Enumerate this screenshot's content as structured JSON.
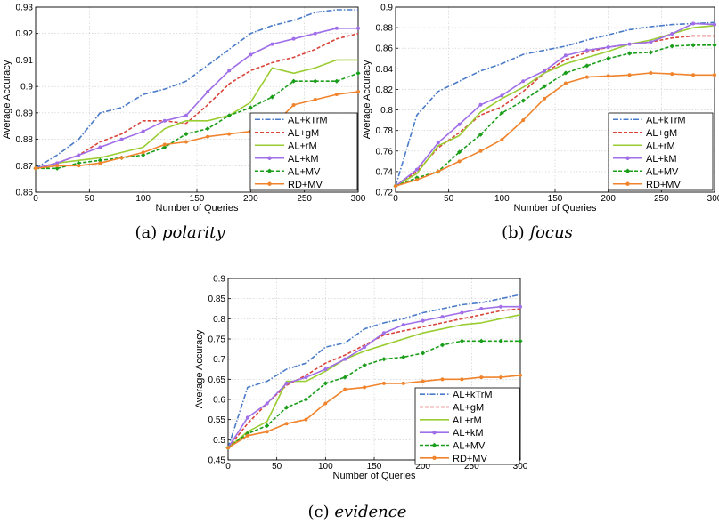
{
  "chart_data": [
    {
      "type": "line",
      "caption_label": "(a)",
      "caption_name": "polarity",
      "xlabel": "Number of Queries",
      "ylabel": "Average Accuracy",
      "xlim": [
        0,
        300
      ],
      "ylim": [
        0.86,
        0.93
      ],
      "xticks": [
        "0",
        "50",
        "100",
        "150",
        "200",
        "250",
        "300"
      ],
      "yticks": [
        "0.86",
        "0.87",
        "0.88",
        "0.89",
        "0.9",
        "0.91",
        "0.92",
        "0.93"
      ],
      "grid": true,
      "legend_position": "bottom-right",
      "x": [
        0,
        20,
        40,
        60,
        80,
        100,
        120,
        140,
        160,
        180,
        200,
        220,
        240,
        260,
        280,
        300
      ],
      "series": [
        {
          "name": "AL+kTrM",
          "color": "#4a7bc8",
          "dash": "6,2,1.5,2",
          "marker": "none",
          "values": [
            0.869,
            0.874,
            0.88,
            0.89,
            0.892,
            0.897,
            0.899,
            0.902,
            0.908,
            0.914,
            0.92,
            0.923,
            0.925,
            0.928,
            0.929,
            0.929
          ]
        },
        {
          "name": "AL+gM",
          "color": "#d9453b",
          "dash": "4,2",
          "marker": "none",
          "values": [
            0.869,
            0.871,
            0.874,
            0.879,
            0.882,
            0.887,
            0.887,
            0.886,
            0.893,
            0.901,
            0.906,
            0.909,
            0.911,
            0.914,
            0.918,
            0.92
          ]
        },
        {
          "name": "AL+rM",
          "color": "#9acd32",
          "dash": "none",
          "marker": "none",
          "values": [
            0.869,
            0.871,
            0.872,
            0.873,
            0.875,
            0.877,
            0.884,
            0.887,
            0.887,
            0.889,
            0.894,
            0.907,
            0.905,
            0.907,
            0.91,
            0.91
          ]
        },
        {
          "name": "AL+kM",
          "color": "#9f6ee8",
          "dash": "none",
          "marker": "circle",
          "values": [
            0.869,
            0.871,
            0.874,
            0.877,
            0.88,
            0.883,
            0.887,
            0.889,
            0.898,
            0.906,
            0.912,
            0.916,
            0.918,
            0.92,
            0.922,
            0.922
          ]
        },
        {
          "name": "AL+MV",
          "color": "#1a9e1a",
          "dash": "4,2",
          "marker": "diamond",
          "values": [
            0.869,
            0.869,
            0.871,
            0.872,
            0.873,
            0.874,
            0.877,
            0.882,
            0.884,
            0.889,
            0.892,
            0.896,
            0.902,
            0.902,
            0.902,
            0.905
          ]
        },
        {
          "name": "RD+MV",
          "color": "#f0832b",
          "dash": "none",
          "marker": "circle",
          "values": [
            0.869,
            0.87,
            0.87,
            0.871,
            0.873,
            0.875,
            0.878,
            0.879,
            0.881,
            0.882,
            0.883,
            0.885,
            0.893,
            0.895,
            0.897,
            0.898
          ]
        }
      ]
    },
    {
      "type": "line",
      "caption_label": "(b)",
      "caption_name": "focus",
      "xlabel": "Number of Queries",
      "ylabel": "Average Accuracy",
      "xlim": [
        0,
        300
      ],
      "ylim": [
        0.72,
        0.9
      ],
      "xticks": [
        "0",
        "50",
        "100",
        "150",
        "200",
        "250",
        "300"
      ],
      "yticks": [
        "0.72",
        "0.74",
        "0.76",
        "0.78",
        "0.8",
        "0.82",
        "0.84",
        "0.86",
        "0.88",
        "0.9"
      ],
      "grid": true,
      "legend_position": "bottom-right",
      "x": [
        0,
        20,
        40,
        60,
        80,
        100,
        120,
        140,
        160,
        180,
        200,
        220,
        240,
        260,
        280,
        300
      ],
      "series": [
        {
          "name": "AL+kTrM",
          "color": "#4a7bc8",
          "dash": "6,2,1.5,2",
          "marker": "none",
          "values": [
            0.726,
            0.795,
            0.818,
            0.828,
            0.838,
            0.845,
            0.854,
            0.858,
            0.862,
            0.868,
            0.873,
            0.878,
            0.881,
            0.883,
            0.884,
            0.885
          ]
        },
        {
          "name": "AL+gM",
          "color": "#d9453b",
          "dash": "4,2",
          "marker": "none",
          "values": [
            0.726,
            0.74,
            0.763,
            0.778,
            0.795,
            0.803,
            0.818,
            0.836,
            0.849,
            0.856,
            0.861,
            0.864,
            0.866,
            0.87,
            0.872,
            0.872
          ]
        },
        {
          "name": "AL+rM",
          "color": "#9acd32",
          "dash": "none",
          "marker": "none",
          "values": [
            0.726,
            0.738,
            0.765,
            0.775,
            0.798,
            0.811,
            0.822,
            0.836,
            0.845,
            0.851,
            0.857,
            0.864,
            0.868,
            0.874,
            0.88,
            0.882
          ]
        },
        {
          "name": "AL+kM",
          "color": "#9f6ee8",
          "dash": "none",
          "marker": "circle",
          "values": [
            0.726,
            0.742,
            0.768,
            0.786,
            0.805,
            0.814,
            0.828,
            0.838,
            0.853,
            0.858,
            0.861,
            0.864,
            0.866,
            0.874,
            0.884,
            0.883
          ]
        },
        {
          "name": "AL+MV",
          "color": "#1a9e1a",
          "dash": "4,2",
          "marker": "diamond",
          "values": [
            0.726,
            0.734,
            0.74,
            0.759,
            0.776,
            0.797,
            0.809,
            0.823,
            0.836,
            0.843,
            0.85,
            0.855,
            0.856,
            0.862,
            0.863,
            0.863
          ]
        },
        {
          "name": "RD+MV",
          "color": "#f0832b",
          "dash": "none",
          "marker": "circle",
          "values": [
            0.726,
            0.732,
            0.74,
            0.75,
            0.76,
            0.771,
            0.79,
            0.811,
            0.826,
            0.832,
            0.833,
            0.834,
            0.836,
            0.835,
            0.834,
            0.834
          ]
        }
      ]
    },
    {
      "type": "line",
      "caption_label": "(c)",
      "caption_name": "evidence",
      "xlabel": "Number of Queries",
      "ylabel": "Average Accuracy",
      "xlim": [
        0,
        300
      ],
      "ylim": [
        0.45,
        0.9
      ],
      "xticks": [
        "0",
        "50",
        "100",
        "150",
        "200",
        "250",
        "300"
      ],
      "yticks": [
        "0.45",
        "0.5",
        "0.55",
        "0.6",
        "0.65",
        "0.7",
        "0.75",
        "0.8",
        "0.85",
        "0.9"
      ],
      "grid": true,
      "legend_position": "bottom-right",
      "x": [
        0,
        20,
        40,
        60,
        80,
        100,
        120,
        140,
        160,
        180,
        200,
        220,
        240,
        260,
        280,
        300
      ],
      "series": [
        {
          "name": "AL+kTrM",
          "color": "#4a7bc8",
          "dash": "6,2,1.5,2",
          "marker": "none",
          "values": [
            0.48,
            0.63,
            0.645,
            0.675,
            0.69,
            0.73,
            0.74,
            0.775,
            0.79,
            0.8,
            0.815,
            0.825,
            0.835,
            0.84,
            0.85,
            0.86
          ]
        },
        {
          "name": "AL+gM",
          "color": "#d9453b",
          "dash": "4,2",
          "marker": "none",
          "values": [
            0.48,
            0.54,
            0.59,
            0.635,
            0.66,
            0.69,
            0.71,
            0.735,
            0.76,
            0.77,
            0.78,
            0.79,
            0.8,
            0.81,
            0.82,
            0.825
          ]
        },
        {
          "name": "AL+rM",
          "color": "#9acd32",
          "dash": "none",
          "marker": "none",
          "values": [
            0.48,
            0.52,
            0.545,
            0.645,
            0.645,
            0.67,
            0.7,
            0.72,
            0.735,
            0.75,
            0.765,
            0.775,
            0.785,
            0.79,
            0.8,
            0.81
          ]
        },
        {
          "name": "AL+kM",
          "color": "#9f6ee8",
          "dash": "none",
          "marker": "circle",
          "values": [
            0.48,
            0.555,
            0.59,
            0.64,
            0.655,
            0.675,
            0.7,
            0.73,
            0.765,
            0.785,
            0.795,
            0.805,
            0.815,
            0.825,
            0.83,
            0.83
          ]
        },
        {
          "name": "AL+MV",
          "color": "#1a9e1a",
          "dash": "4,2",
          "marker": "diamond",
          "values": [
            0.48,
            0.515,
            0.535,
            0.58,
            0.6,
            0.64,
            0.655,
            0.685,
            0.7,
            0.705,
            0.715,
            0.735,
            0.745,
            0.745,
            0.745,
            0.745
          ]
        },
        {
          "name": "RD+MV",
          "color": "#f0832b",
          "dash": "none",
          "marker": "circle",
          "values": [
            0.48,
            0.51,
            0.52,
            0.54,
            0.55,
            0.59,
            0.625,
            0.63,
            0.64,
            0.64,
            0.645,
            0.65,
            0.65,
            0.655,
            0.655,
            0.66
          ]
        }
      ]
    }
  ]
}
